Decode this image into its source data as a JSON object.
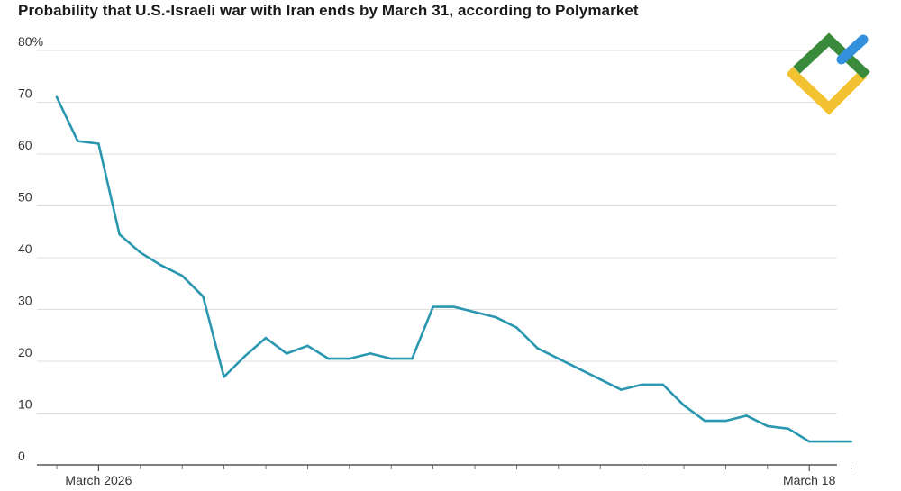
{
  "chart_data": {
    "type": "line",
    "title": "Probability that U.S.-Israeli war with Iran ends by March 31, according to Polymarket",
    "xlabel": "",
    "ylabel": "",
    "ylim": [
      0,
      80
    ],
    "y_ticks": [
      {
        "value": 80,
        "label": "80%"
      },
      {
        "value": 70,
        "label": "70"
      },
      {
        "value": 60,
        "label": "60"
      },
      {
        "value": 50,
        "label": "50"
      },
      {
        "value": 40,
        "label": "40"
      },
      {
        "value": 30,
        "label": "30"
      },
      {
        "value": 20,
        "label": "20"
      },
      {
        "value": 10,
        "label": "10"
      },
      {
        "value": 0,
        "label": "0"
      }
    ],
    "x_day_range": [
      0,
      19
    ],
    "x_tick_labels": [
      {
        "day": 1,
        "label": "March 2026"
      },
      {
        "day": 18,
        "label": "March 18"
      }
    ],
    "grid": true,
    "series": [
      {
        "name": "Polymarket probability",
        "color": "#2a97b0",
        "x": [
          0,
          0.5,
          1,
          1.5,
          2,
          2.5,
          3,
          3.5,
          4,
          4.5,
          5,
          5.5,
          6,
          6.5,
          7,
          7.5,
          8,
          8.5,
          9,
          9.5,
          10,
          10.5,
          11,
          11.5,
          12,
          12.5,
          13,
          13.5,
          14,
          14.5,
          15,
          15.5,
          16,
          16.5,
          17,
          17.5,
          18,
          18.5,
          19
        ],
        "values": [
          71,
          62.5,
          62,
          44.5,
          41,
          38.5,
          36.5,
          32.5,
          17,
          21,
          24.5,
          21.5,
          23,
          20.5,
          20.5,
          21.5,
          20.5,
          20.5,
          30.5,
          30.5,
          29.5,
          28.5,
          26.5,
          22.5,
          20.5,
          18.5,
          16.5,
          14.5,
          15.5,
          15.5,
          11.5,
          8.5,
          8.5,
          9.5,
          7.5,
          7,
          4.5,
          4.5,
          4.5
        ]
      }
    ]
  },
  "logo": {
    "colors": {
      "green": "#3a8a3c",
      "yellow": "#f2c230",
      "blue": "#3390dc"
    }
  }
}
